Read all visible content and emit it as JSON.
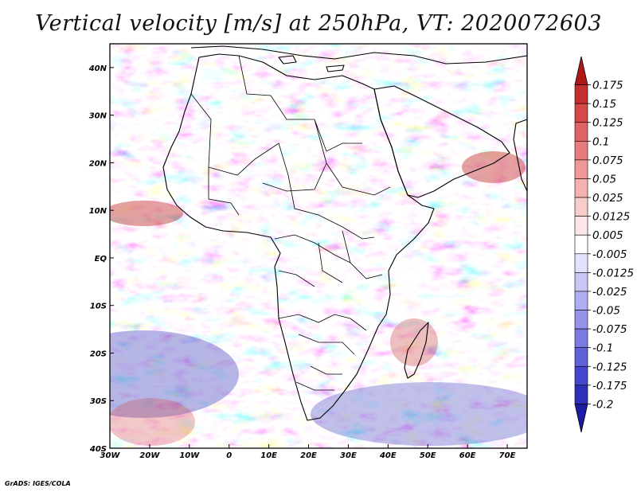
{
  "title": "Vertical velocity [m/s] at 250hPa, VT: 2020072603",
  "credit": "GrADS: IGES/COLA",
  "map": {
    "lon_range": [
      -30,
      75
    ],
    "lat_range": [
      -40,
      45
    ],
    "lon_labels": [
      "30W",
      "20W",
      "10W",
      "0",
      "10E",
      "20E",
      "30E",
      "40E",
      "50E",
      "60E",
      "70E"
    ],
    "lat_labels": [
      "40N",
      "30N",
      "20N",
      "10N",
      "EQ",
      "10S",
      "20S",
      "30S",
      "40S"
    ],
    "lon_ticks": [
      -30,
      -20,
      -10,
      0,
      10,
      20,
      30,
      40,
      50,
      60,
      70
    ],
    "lat_ticks": [
      40,
      30,
      20,
      10,
      0,
      -10,
      -20,
      -30,
      -40
    ],
    "field": "vertical velocity",
    "level": "250hPa"
  },
  "colorbar": {
    "labels": [
      "0.175",
      "0.15",
      "0.125",
      "0.1",
      "0.075",
      "0.05",
      "0.025",
      "0.0125",
      "0.005",
      "-0.005",
      "-0.0125",
      "-0.025",
      "-0.05",
      "-0.075",
      "-0.1",
      "-0.125",
      "-0.175",
      "-0.2"
    ],
    "colors": [
      "#b01818",
      "#c42e2e",
      "#d44848",
      "#e06262",
      "#e87c7c",
      "#f09898",
      "#f5b2b2",
      "#f9cccc",
      "#fce6e6",
      "#ffffff",
      "#e2e2fc",
      "#c8c8f7",
      "#aeaef1",
      "#9494ea",
      "#7a7ae2",
      "#6060d8",
      "#4646cc",
      "#2e2eb8",
      "#1c1ca2"
    ]
  }
}
